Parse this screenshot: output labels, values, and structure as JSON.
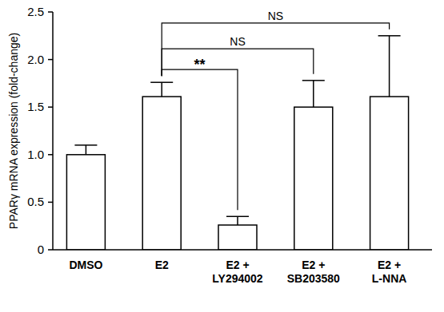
{
  "chart_data": {
    "type": "bar",
    "y_label": "PPARγ mRNA expression (fold-change)",
    "categories": [
      "DMSO",
      "E2",
      "E2 + LY294002",
      "E2 + SB203580",
      "E2 + L-NNA"
    ],
    "values": [
      1.0,
      1.61,
      0.26,
      1.5,
      1.61
    ],
    "errors": [
      0.1,
      0.15,
      0.09,
      0.28,
      0.64
    ],
    "color": "#ffffff",
    "ylim": [
      0,
      2.5
    ],
    "yticks": [
      0,
      0.5,
      {
        "value": 1,
        "label": "1.0"
      },
      1.5,
      {
        "value": 2,
        "label": "2.0"
      },
      2.5
    ],
    "grid": false,
    "comparisons": [
      {
        "from": 1,
        "to": 2,
        "label": "**"
      },
      {
        "from": 1,
        "to": 3,
        "label": "NS"
      },
      {
        "from": 1,
        "to": 4,
        "label": "NS"
      }
    ]
  }
}
